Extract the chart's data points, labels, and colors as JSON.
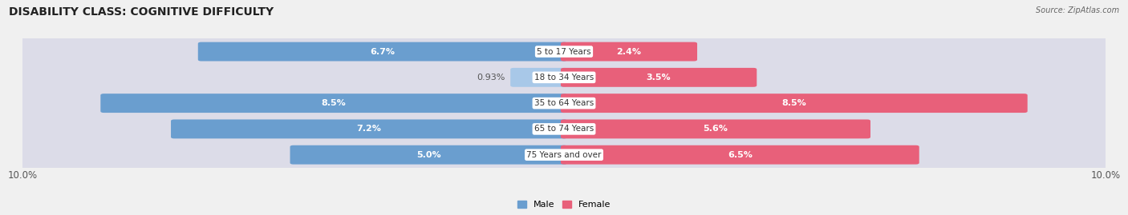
{
  "title": "DISABILITY CLASS: COGNITIVE DIFFICULTY",
  "source": "Source: ZipAtlas.com",
  "categories": [
    "5 to 17 Years",
    "18 to 34 Years",
    "35 to 64 Years",
    "65 to 74 Years",
    "75 Years and over"
  ],
  "male_values": [
    6.7,
    0.93,
    8.5,
    7.2,
    5.0
  ],
  "female_values": [
    2.4,
    3.5,
    8.5,
    5.6,
    6.5
  ],
  "male_labels": [
    "6.7%",
    "0.93%",
    "8.5%",
    "7.2%",
    "5.0%"
  ],
  "female_labels": [
    "2.4%",
    "3.5%",
    "8.5%",
    "5.6%",
    "6.5%"
  ],
  "male_color_dark": "#6a9ecf",
  "male_color_light": "#a8c8e8",
  "female_color_dark": "#e8607a",
  "female_color_light": "#f4a0b8",
  "max_val": 10.0,
  "background_color": "#f0f0f0",
  "row_bg_color": "#e0e0e8",
  "title_fontsize": 10,
  "label_fontsize": 8,
  "tick_fontsize": 8.5,
  "label_threshold": 1.5
}
